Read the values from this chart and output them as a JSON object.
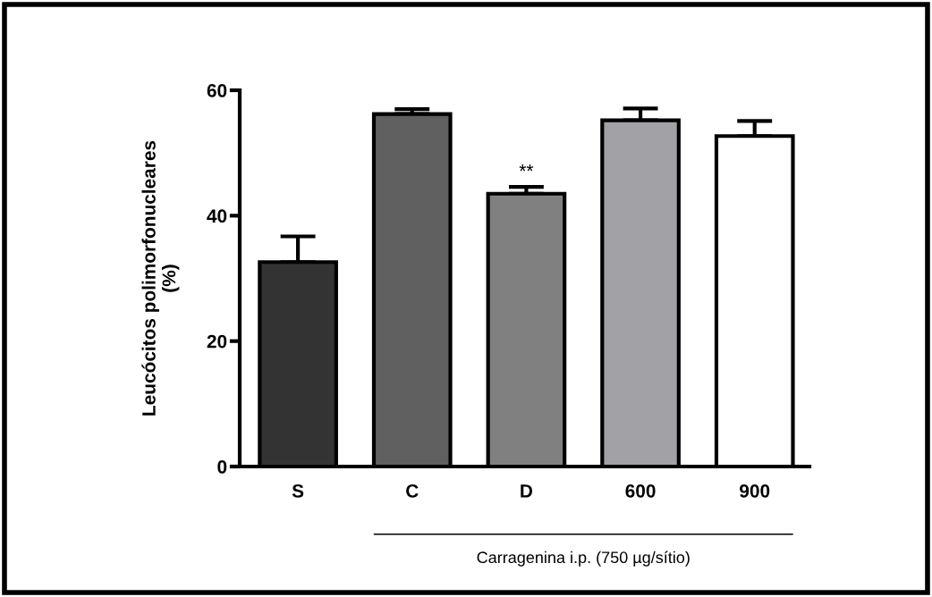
{
  "chart_data": {
    "type": "bar",
    "ylabel": "Leucócitos polimorfonucleares\n(%)",
    "categories": [
      "S",
      "C",
      "D",
      "600",
      "900"
    ],
    "values": [
      32.6,
      56.2,
      43.5,
      55.2,
      52.7
    ],
    "colors": [
      "#333333",
      "#606060",
      "#808080",
      "#a2a1a6",
      "#ffffff"
    ],
    "errors": [
      [
        32.6,
        36.7
      ],
      [
        56.2,
        57.0
      ],
      [
        43.5,
        44.6
      ],
      [
        55.2,
        57.1
      ],
      [
        52.7,
        55.1
      ]
    ],
    "ylim": [
      0,
      60
    ],
    "yticks": [
      0,
      20,
      40,
      60
    ],
    "grid": false,
    "legend": false,
    "annotations": [
      "**",
      "Carragenina i.p. (750 µg/sítio)"
    ]
  }
}
